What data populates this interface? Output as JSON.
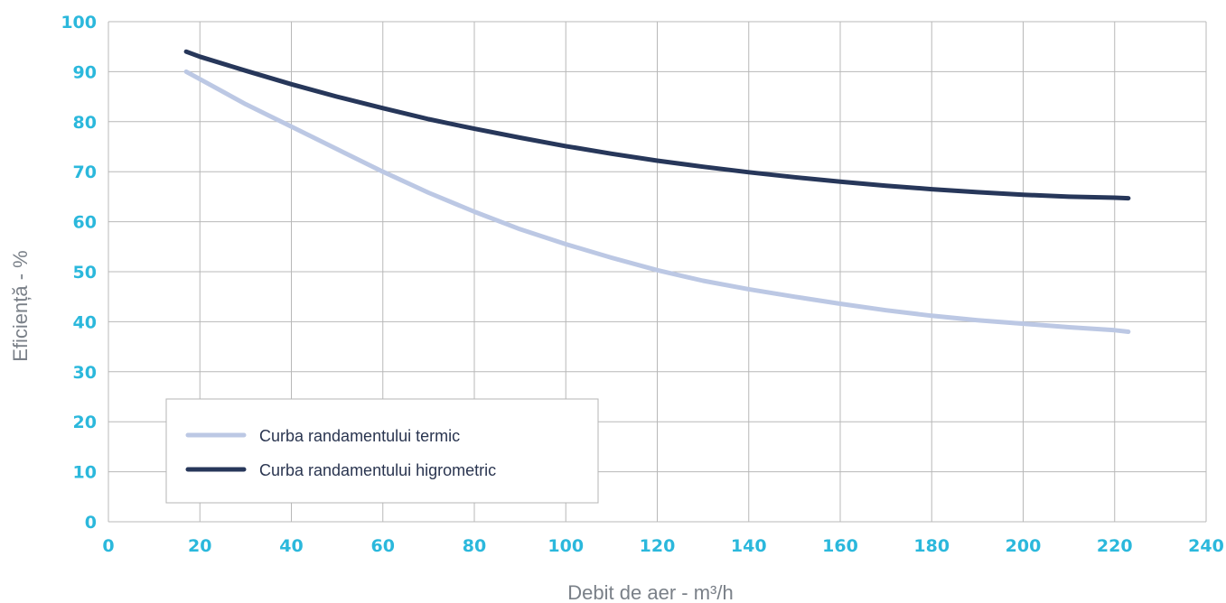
{
  "chart_data": {
    "type": "line",
    "xlabel": "Debit de aer - m³/h",
    "ylabel": "Eficiență - %",
    "xlim": [
      0,
      240
    ],
    "ylim": [
      0,
      100
    ],
    "x_ticks": [
      "0",
      "20",
      "40",
      "60",
      "80",
      "100",
      "120",
      "140",
      "160",
      "180",
      "200",
      "220",
      "240"
    ],
    "y_ticks": [
      "0",
      "10",
      "20",
      "30",
      "40",
      "50",
      "60",
      "70",
      "80",
      "90",
      "100"
    ],
    "grid": true,
    "legend_position": "bottom-left",
    "tick_color": "#2bb8dc",
    "series": [
      {
        "name": "Curba randamentului termic",
        "color": "#bcc8e4",
        "x": [
          17,
          20,
          30,
          40,
          50,
          60,
          70,
          80,
          90,
          100,
          110,
          120,
          130,
          140,
          150,
          160,
          170,
          180,
          190,
          200,
          210,
          220,
          223
        ],
        "y": [
          90,
          88.5,
          83.5,
          79,
          74.5,
          70,
          65.8,
          62,
          58.5,
          55.5,
          52.8,
          50.3,
          48.2,
          46.5,
          45,
          43.6,
          42.3,
          41.2,
          40.3,
          39.6,
          38.9,
          38.3,
          38
        ]
      },
      {
        "name": "Curba randamentului higrometric",
        "color": "#27375a",
        "x": [
          17,
          20,
          30,
          40,
          50,
          60,
          70,
          80,
          90,
          100,
          110,
          120,
          130,
          140,
          150,
          160,
          170,
          180,
          190,
          200,
          210,
          220,
          223
        ],
        "y": [
          94,
          93,
          90.2,
          87.5,
          85,
          82.7,
          80.5,
          78.6,
          76.8,
          75.1,
          73.6,
          72.2,
          71,
          69.9,
          68.9,
          68,
          67.2,
          66.5,
          65.9,
          65.4,
          65,
          64.8,
          64.7
        ]
      }
    ]
  }
}
